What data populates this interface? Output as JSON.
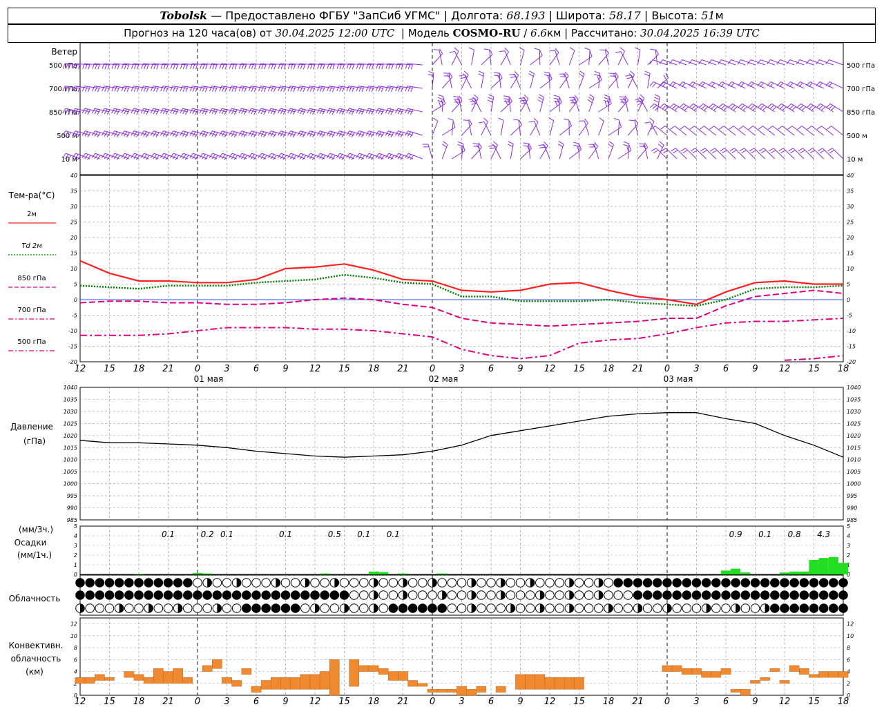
{
  "header": {
    "station": "Tobolsk",
    "dash": "—",
    "provider": "Предоставлено ФГБУ \"ЗапСиб УГМС\"",
    "lon_label": "Долгота:",
    "lon_value": "68.193",
    "lat_label": "Широта:",
    "lat_value": "58.17",
    "alt_label": "Высота:",
    "alt_value": "51",
    "alt_unit": "м",
    "forecast_label": "Прогноз на 120 часа(ов) от",
    "forecast_time": "30.04.2025 12:00 UTC",
    "model_label": "Модель",
    "model_name": "COSMO-RU",
    "model_res": "6.6",
    "model_res_unit": "км",
    "calc_label": "Рассчитано:",
    "calc_time": "30.04.2025 16:39 UTC"
  },
  "wind_panel": {
    "title": "Ветер",
    "levels": [
      "500 гПа",
      "700 гПа",
      "850 гПа",
      "500  м",
      "10  м"
    ],
    "barb_color": "#8a2be2"
  },
  "temp_panel": {
    "title": "Тем-ра(°C)",
    "legend": [
      {
        "label": "2м",
        "color": "#ff2020",
        "style": "solid"
      },
      {
        "label": "Td  2м",
        "color": "#008000",
        "style": "dotted"
      },
      {
        "label": "850 гПа",
        "color": "#e0007f",
        "style": "dash"
      },
      {
        "label": "700 гПа",
        "color": "#e0007f",
        "style": "dashdot"
      },
      {
        "label": "500 гПа",
        "color": "#e0007f",
        "style": "dashdot"
      }
    ],
    "y_ticks": [
      "40",
      "35",
      "30",
      "25",
      "20",
      "15",
      "10",
      "5",
      "0",
      "-5",
      "-10",
      "-15",
      "-20"
    ]
  },
  "pressure_panel": {
    "title": "Давление",
    "unit": "(гПа)",
    "y_ticks": [
      "1040",
      "1035",
      "1030",
      "1025",
      "1020",
      "1015",
      "1010",
      "1005",
      "1000",
      "995",
      "990",
      "985"
    ]
  },
  "precip_panel": {
    "unit3": "(мм/3ч.)",
    "title": "Осадки",
    "unit1": "(мм/1ч.)",
    "y_ticks": [
      "5",
      "4",
      "3",
      "2",
      "1",
      "0"
    ],
    "totals": [
      "0.1",
      "0.2",
      "0.1",
      "0.1",
      "0.5",
      "0.1",
      "0.1",
      "0.9",
      "0.1",
      "0.8",
      "4.3"
    ],
    "bar_color": "#22dd22"
  },
  "cloud_panel": {
    "title": "Облачность"
  },
  "convective_panel": {
    "title_1": "Конвективн.",
    "title_2": "облачность",
    "unit": "(км)",
    "y_ticks": [
      "12",
      "10",
      "8",
      "6",
      "4",
      "2",
      "0"
    ],
    "bar_color": "#f08a30"
  },
  "x_axis": {
    "hour_ticks": [
      "12",
      "15",
      "18",
      "21",
      "0",
      "3",
      "6",
      "9",
      "12",
      "15",
      "18",
      "21",
      "0",
      "3",
      "6",
      "9",
      "12",
      "15",
      "18",
      "21",
      "0",
      "3",
      "6",
      "9",
      "12",
      "15",
      "18"
    ],
    "day_labels": [
      "01 мая",
      "02 мая",
      "03 мая"
    ]
  },
  "chart_data": [
    {
      "type": "line",
      "title": "Тем-ра(°C)",
      "x_hours_from_start": [
        0,
        3,
        6,
        9,
        12,
        15,
        18,
        21,
        24,
        27,
        30,
        33,
        36,
        39,
        42,
        45,
        48,
        51,
        54,
        57,
        60,
        63,
        66,
        69,
        72,
        75,
        78
      ],
      "ylim": [
        -20,
        40
      ],
      "series": [
        {
          "name": "2м",
          "values": [
            12.5,
            8.5,
            6,
            6,
            5.5,
            5.5,
            6.5,
            10,
            10.5,
            11.5,
            9.5,
            6.5,
            6,
            3,
            2.5,
            3,
            5,
            5.5,
            3,
            1,
            0,
            -1.5,
            2.5,
            5.5,
            6,
            5,
            5
          ]
        },
        {
          "name": "Td  2м",
          "values": [
            4.5,
            4,
            3.5,
            4.5,
            4.5,
            4.5,
            5.5,
            6,
            6.5,
            8,
            7,
            5.5,
            5,
            1,
            1,
            -0.5,
            -0.5,
            -0.5,
            0,
            -1,
            -1.5,
            -2,
            0,
            3.5,
            4,
            4,
            4.5
          ]
        },
        {
          "name": "850 гПа",
          "values": [
            -1,
            -0.5,
            -0.5,
            -1,
            -1,
            -1.5,
            -1.5,
            -1,
            0,
            0.5,
            0,
            -1.5,
            -2.5,
            -6,
            -7.5,
            -8,
            -8.5,
            -8,
            -7.5,
            -7,
            -6,
            -6,
            -2,
            1,
            2,
            3,
            2
          ]
        },
        {
          "name": "700 гПа",
          "values": [
            -11.5,
            -11.5,
            -11.5,
            -11,
            -10,
            -9,
            -9,
            -9,
            -9.5,
            -9.5,
            -10,
            -11,
            -12,
            -16,
            -18,
            -19,
            -18,
            -14,
            -13,
            -12.5,
            -11,
            -9,
            -7.5,
            -7,
            -7,
            -6.5,
            -6
          ]
        },
        {
          "name": "500 гПа",
          "values": [
            null,
            null,
            null,
            null,
            null,
            null,
            null,
            null,
            null,
            null,
            null,
            null,
            null,
            null,
            null,
            null,
            null,
            null,
            null,
            null,
            null,
            null,
            null,
            null,
            -19.5,
            -19,
            -18
          ]
        }
      ]
    },
    {
      "type": "line",
      "title": "Давление",
      "ylabel": "(гПа)",
      "ylim": [
        985,
        1040
      ],
      "x_hours_from_start": [
        0,
        3,
        6,
        9,
        12,
        15,
        18,
        21,
        24,
        27,
        30,
        33,
        36,
        39,
        42,
        45,
        48,
        51,
        54,
        57,
        60,
        63,
        66,
        69,
        72,
        75,
        78
      ],
      "series": [
        {
          "name": "Давление",
          "values": [
            1018,
            1017,
            1017,
            1016.5,
            1016,
            1015,
            1013.5,
            1012.5,
            1011.5,
            1011,
            1011.5,
            1012,
            1013.5,
            1016,
            1020,
            1022,
            1024,
            1026,
            1028,
            1029,
            1029.5,
            1029.5,
            1027,
            1025,
            1020,
            1016,
            1011
          ]
        }
      ]
    },
    {
      "type": "bar",
      "title": "Осадки",
      "ylabel": "(мм/1ч.)",
      "ylim": [
        0,
        5
      ],
      "x_hours_from_start": [
        6,
        12,
        13,
        25,
        30,
        31,
        33,
        37,
        66,
        67,
        68,
        72,
        73,
        74,
        75,
        76,
        77,
        78
      ],
      "values": [
        0.05,
        0.15,
        0.1,
        0.1,
        0.3,
        0.25,
        0.1,
        0.1,
        0.4,
        0.6,
        0.2,
        0.2,
        0.3,
        0.3,
        1.5,
        1.7,
        1.8,
        1.2
      ]
    },
    {
      "type": "bar",
      "title": "Конвективн. облачность",
      "ylabel": "(км)",
      "ylim": [
        0,
        13
      ],
      "bars": [
        {
          "h": 0,
          "lo": 2,
          "hi": 3
        },
        {
          "h": 1,
          "lo": 2,
          "hi": 3
        },
        {
          "h": 2,
          "lo": 2.5,
          "hi": 3.5
        },
        {
          "h": 3,
          "lo": 2.5,
          "hi": 3
        },
        {
          "h": 5,
          "lo": 3,
          "hi": 4
        },
        {
          "h": 6,
          "lo": 2.5,
          "hi": 3.5
        },
        {
          "h": 7,
          "lo": 2,
          "hi": 3
        },
        {
          "h": 8,
          "lo": 2,
          "hi": 4.5
        },
        {
          "h": 9,
          "lo": 2,
          "hi": 4
        },
        {
          "h": 10,
          "lo": 2,
          "hi": 4.5
        },
        {
          "h": 11,
          "lo": 2,
          "hi": 3
        },
        {
          "h": 13,
          "lo": 4,
          "hi": 5
        },
        {
          "h": 14,
          "lo": 4.5,
          "hi": 6
        },
        {
          "h": 15,
          "lo": 2,
          "hi": 3
        },
        {
          "h": 16,
          "lo": 1.5,
          "hi": 2.5
        },
        {
          "h": 17,
          "lo": 3.5,
          "hi": 4.5
        },
        {
          "h": 18,
          "lo": 0.5,
          "hi": 1.5
        },
        {
          "h": 19,
          "lo": 1,
          "hi": 2.5
        },
        {
          "h": 20,
          "lo": 1,
          "hi": 3
        },
        {
          "h": 21,
          "lo": 1,
          "hi": 3
        },
        {
          "h": 22,
          "lo": 1,
          "hi": 3
        },
        {
          "h": 23,
          "lo": 1,
          "hi": 3.5
        },
        {
          "h": 24,
          "lo": 1,
          "hi": 3.5
        },
        {
          "h": 25,
          "lo": 1,
          "hi": 4
        },
        {
          "h": 26,
          "lo": 0,
          "hi": 6
        },
        {
          "h": 27,
          "lo": 0,
          "hi": 0
        },
        {
          "h": 28,
          "lo": 1.5,
          "hi": 6
        },
        {
          "h": 29,
          "lo": 4,
          "hi": 5
        },
        {
          "h": 30,
          "lo": 4,
          "hi": 5
        },
        {
          "h": 31,
          "lo": 3.5,
          "hi": 4.5
        },
        {
          "h": 32,
          "lo": 2.5,
          "hi": 4
        },
        {
          "h": 33,
          "lo": 2.5,
          "hi": 4
        },
        {
          "h": 34,
          "lo": 1.5,
          "hi": 2.5
        },
        {
          "h": 35,
          "lo": 1.5,
          "hi": 2
        },
        {
          "h": 36,
          "lo": 0.5,
          "hi": 1
        },
        {
          "h": 37,
          "lo": 0.5,
          "hi": 1
        },
        {
          "h": 38,
          "lo": 0.5,
          "hi": 1
        },
        {
          "h": 39,
          "lo": 0,
          "hi": 1.5
        },
        {
          "h": 40,
          "lo": 0,
          "hi": 1
        },
        {
          "h": 41,
          "lo": 0.5,
          "hi": 1.5
        },
        {
          "h": 43,
          "lo": 0.5,
          "hi": 1.5
        },
        {
          "h": 45,
          "lo": 1,
          "hi": 3.5
        },
        {
          "h": 46,
          "lo": 1,
          "hi": 3.5
        },
        {
          "h": 47,
          "lo": 1,
          "hi": 3.5
        },
        {
          "h": 48,
          "lo": 1,
          "hi": 3
        },
        {
          "h": 49,
          "lo": 1,
          "hi": 3
        },
        {
          "h": 50,
          "lo": 1,
          "hi": 3
        },
        {
          "h": 51,
          "lo": 1,
          "hi": 3
        },
        {
          "h": 60,
          "lo": 4,
          "hi": 5
        },
        {
          "h": 61,
          "lo": 4,
          "hi": 5
        },
        {
          "h": 62,
          "lo": 3.5,
          "hi": 4.5
        },
        {
          "h": 63,
          "lo": 3.5,
          "hi": 4.5
        },
        {
          "h": 64,
          "lo": 3,
          "hi": 4
        },
        {
          "h": 65,
          "lo": 3,
          "hi": 4
        },
        {
          "h": 66,
          "lo": 3.5,
          "hi": 4.5
        },
        {
          "h": 67,
          "lo": 0.5,
          "hi": 1
        },
        {
          "h": 68,
          "lo": 0,
          "hi": 1
        },
        {
          "h": 69,
          "lo": 2,
          "hi": 2.5
        },
        {
          "h": 70,
          "lo": 2.5,
          "hi": 3
        },
        {
          "h": 71,
          "lo": 4,
          "hi": 4.5
        },
        {
          "h": 72,
          "lo": 2,
          "hi": 2.5
        },
        {
          "h": 73,
          "lo": 4,
          "hi": 5
        },
        {
          "h": 74,
          "lo": 3.5,
          "hi": 4.5
        },
        {
          "h": 75,
          "lo": 3,
          "hi": 3.5
        },
        {
          "h": 76,
          "lo": 3,
          "hi": 4
        },
        {
          "h": 77,
          "lo": 3,
          "hi": 4
        },
        {
          "h": 78,
          "lo": 3,
          "hi": 4
        }
      ]
    }
  ]
}
